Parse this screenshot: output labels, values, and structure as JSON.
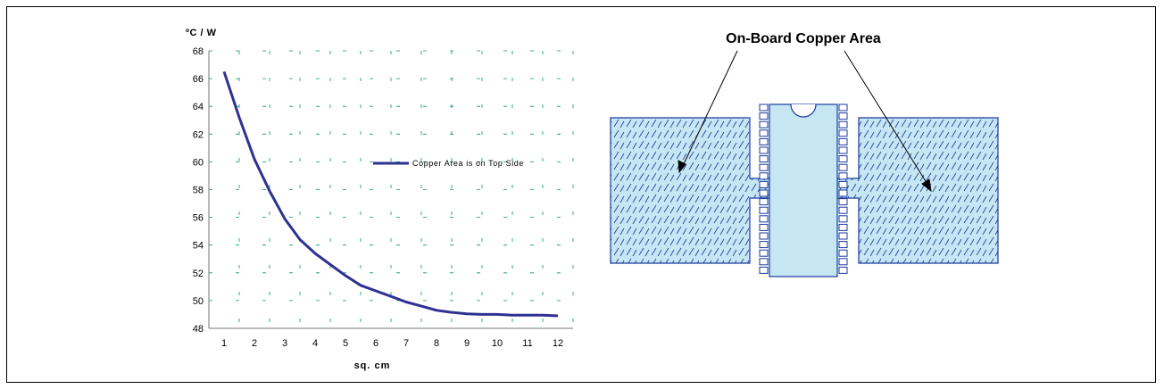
{
  "chart_data": {
    "type": "line",
    "ylabel": "ºC / W",
    "xlabel": "sq. cm",
    "x_ticks": [
      1,
      2,
      3,
      4,
      5,
      6,
      7,
      8,
      9,
      10,
      11,
      12
    ],
    "y_ticks": [
      48,
      50,
      52,
      54,
      56,
      58,
      60,
      62,
      64,
      66,
      68
    ],
    "xlim": [
      0.5,
      12.5
    ],
    "ylim": [
      48,
      68
    ],
    "grid": true,
    "legend_position": "right-middle",
    "series": [
      {
        "name": "Copper Area is on Top Side",
        "color": "#2e3192",
        "x": [
          1,
          1.5,
          2,
          2.5,
          3,
          3.5,
          4,
          4.5,
          5,
          5.5,
          6,
          6.5,
          7,
          7.5,
          8,
          8.5,
          9,
          9.5,
          10,
          10.5,
          11,
          11.5,
          12
        ],
        "y": [
          66.5,
          63.2,
          60.2,
          57.9,
          55.9,
          54.4,
          53.4,
          52.6,
          51.8,
          51.1,
          50.7,
          50.3,
          49.9,
          49.6,
          49.3,
          49.15,
          49.05,
          49.0,
          49.0,
          48.95,
          48.95,
          48.95,
          48.9
        ]
      }
    ]
  },
  "diagram": {
    "title": "On-Board Copper Area",
    "copper_fill": "#c5e6f2",
    "outline_color": "#1a3a9e"
  }
}
